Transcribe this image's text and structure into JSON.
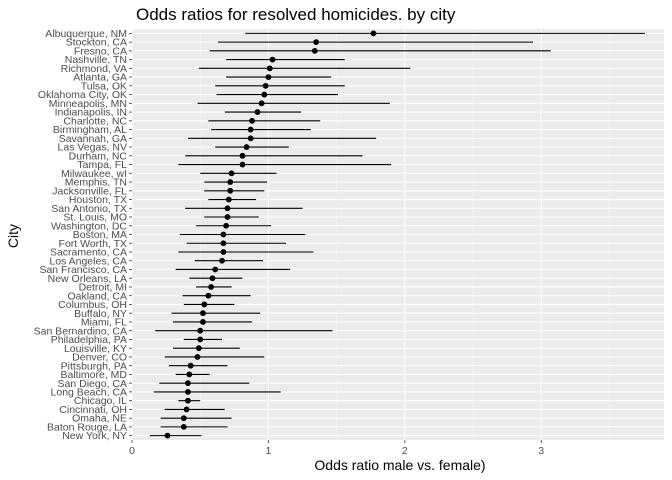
{
  "chart_data": {
    "type": "scatter",
    "title": "Odds ratios for resolved homicides. by city",
    "xlabel": "Odds ratio male vs. female)",
    "ylabel": "City",
    "xlim": [
      0,
      3.9
    ],
    "x_ticks": [
      0,
      1,
      2,
      3
    ],
    "grid": true,
    "legend": "none",
    "colors": {
      "panel": "#ebebeb",
      "grid_major": "#ffffff",
      "grid_minor": "#f5f5f5",
      "point": "#000000",
      "errorbar": "#000000",
      "tick_text": "#4d4d4d"
    },
    "categories": [
      "Albuquerque, NM",
      "Stockton, CA",
      "Fresno, CA",
      "Nashville, TN",
      "Richmond, VA",
      "Atlanta, GA",
      "Tulsa, OK",
      "Oklahoma City, OK",
      "Minneapolis, MN",
      "Indianapolis, IN",
      "Charlotte, NC",
      "Birmingham, AL",
      "Savannah, GA",
      "Las Vegas, NV",
      "Durham, NC",
      "Tampa, FL",
      "Milwaukee, wI",
      "Memphis, TN",
      "Jacksonville, FL",
      "Houston, TX",
      "San Antonio, TX",
      "St. Louis, MO",
      "Washington, DC",
      "Boston, MA",
      "Fort Worth, TX",
      "Sacramento, CA",
      "Los Angeles, CA",
      "San Francisco, CA",
      "New Orleans, LA",
      "Detroit, MI",
      "Oakland, CA",
      "Columbus, OH",
      "Buffalo, NY",
      "Miami, FL",
      "San Bernardino, CA",
      "Philadelphia, PA",
      "Louisville, KY",
      "Denver, CO",
      "Pittsburgh, PA",
      "Baltimore, MD",
      "San Diego, CA",
      "Long Beach, CA",
      "Chicago, IL",
      "Cincinnati, OH",
      "Omaha, NE",
      "Baton Rouge, LA",
      "New York, NY"
    ],
    "estimate": [
      1.77,
      1.35,
      1.34,
      1.03,
      1.01,
      1.0,
      0.98,
      0.97,
      0.95,
      0.92,
      0.88,
      0.87,
      0.87,
      0.84,
      0.81,
      0.81,
      0.73,
      0.72,
      0.72,
      0.71,
      0.7,
      0.7,
      0.69,
      0.67,
      0.67,
      0.67,
      0.66,
      0.61,
      0.59,
      0.58,
      0.56,
      0.53,
      0.52,
      0.52,
      0.5,
      0.5,
      0.49,
      0.48,
      0.43,
      0.42,
      0.41,
      0.41,
      0.41,
      0.4,
      0.38,
      0.38,
      0.26
    ],
    "ci_low": [
      0.83,
      0.63,
      0.57,
      0.69,
      0.49,
      0.69,
      0.61,
      0.62,
      0.48,
      0.68,
      0.56,
      0.58,
      0.41,
      0.61,
      0.39,
      0.34,
      0.5,
      0.53,
      0.53,
      0.56,
      0.39,
      0.53,
      0.47,
      0.35,
      0.4,
      0.34,
      0.46,
      0.32,
      0.42,
      0.47,
      0.37,
      0.38,
      0.29,
      0.3,
      0.17,
      0.38,
      0.3,
      0.24,
      0.27,
      0.32,
      0.2,
      0.16,
      0.34,
      0.24,
      0.21,
      0.21,
      0.13
    ],
    "ci_high": [
      3.76,
      2.94,
      3.07,
      1.56,
      2.04,
      1.46,
      1.56,
      1.51,
      1.89,
      1.24,
      1.38,
      1.31,
      1.79,
      1.15,
      1.69,
      1.9,
      1.06,
      0.99,
      0.97,
      0.91,
      1.25,
      0.93,
      1.02,
      1.27,
      1.13,
      1.33,
      0.96,
      1.16,
      0.81,
      0.73,
      0.87,
      0.75,
      0.94,
      0.88,
      1.47,
      0.66,
      0.79,
      0.97,
      0.7,
      0.57,
      0.86,
      1.09,
      0.5,
      0.68,
      0.73,
      0.7,
      0.51
    ]
  }
}
